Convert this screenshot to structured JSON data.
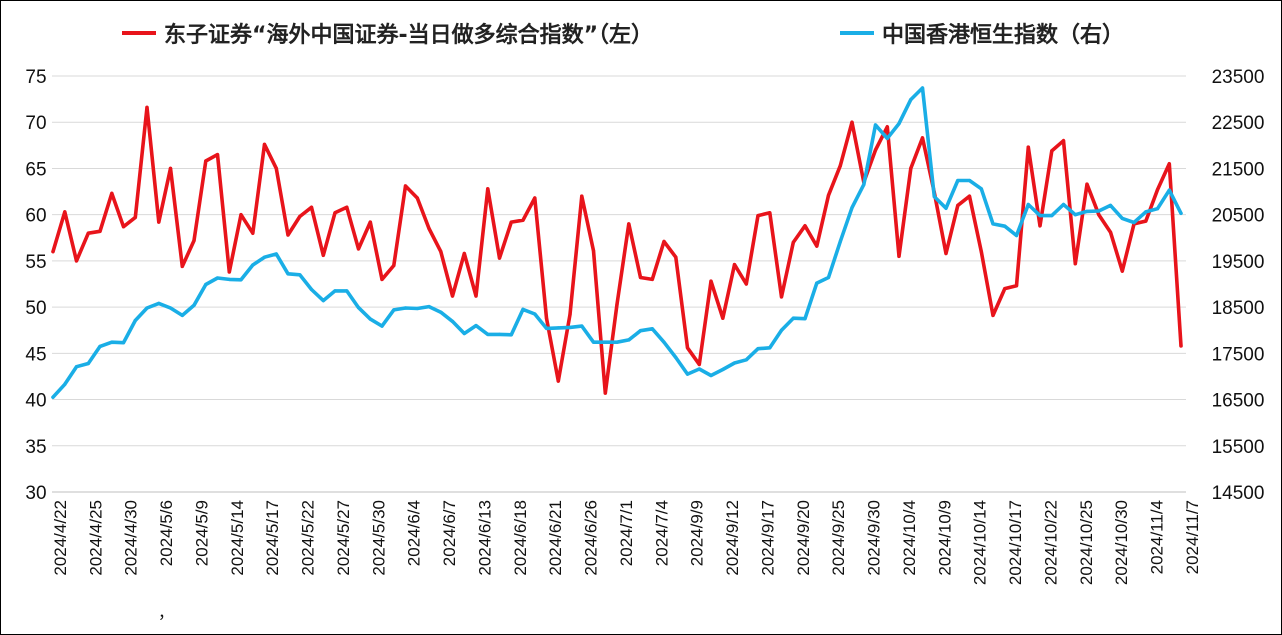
{
  "chart_data": {
    "type": "line",
    "legend": [
      {
        "name": "东子证券“海外中国证券-当日做多综合指数”（左）",
        "color": "#e8141b",
        "axis": "left"
      },
      {
        "name": "中国香港恒生指数（右）",
        "color": "#1aaee6",
        "axis": "right"
      }
    ],
    "left_axis": {
      "min": 30,
      "max": 75,
      "ticks": [
        "75",
        "70",
        "65",
        "60",
        "55",
        "50",
        "45",
        "40",
        "35",
        "30"
      ]
    },
    "right_axis": {
      "min": 14500,
      "max": 23500,
      "ticks": [
        "23500",
        "22500",
        "21500",
        "20500",
        "19500",
        "18500",
        "17500",
        "16500",
        "15500",
        "14500"
      ]
    },
    "x_ticks": [
      "2024/4/22",
      "2024/4/25",
      "2024/4/30",
      "2024/5/6",
      "2024/5/9",
      "2024/5/14",
      "2024/5/17",
      "2024/5/22",
      "2024/5/27",
      "2024/5/30",
      "2024/6/4",
      "2024/6/7",
      "2024/6/13",
      "2024/6/18",
      "2024/6/21",
      "2024/6/26",
      "2024/7/1",
      "2024/7/4",
      "2024/9/9",
      "2024/9/12",
      "2024/9/17",
      "2024/9/20",
      "2024/9/25",
      "2024/9/30",
      "2024/10/4",
      "2024/10/9",
      "2024/10/14",
      "2024/10/17",
      "2024/10/22",
      "2024/10/25",
      "2024/10/30",
      "2024/11/4",
      "2024/11/7"
    ],
    "annotation": "，",
    "grid": "horizontal",
    "series": [
      {
        "name": "东子证券“海外中国证券-当日做多综合指数”（左）",
        "color": "#e8141b",
        "axis": "left",
        "values": [
          56,
          60.3,
          55,
          58,
          58.2,
          62.3,
          58.7,
          59.7,
          71.6,
          59.2,
          65,
          54.4,
          57.2,
          65.8,
          66.5,
          53.8,
          60,
          58,
          67.6,
          65,
          57.8,
          59.8,
          60.8,
          55.6,
          60.2,
          60.8,
          56.3,
          59.2,
          53,
          54.5,
          63.1,
          61.8,
          58.5,
          56,
          51.2,
          55.8,
          51.2,
          62.8,
          55.3,
          59.2,
          59.4,
          61.8,
          48.8,
          42,
          49.2,
          62,
          56.1,
          40.7,
          50.3,
          59,
          53.2,
          53,
          57.1,
          55.4,
          45.6,
          43.8,
          52.8,
          48.8,
          54.6,
          52.5,
          59.9,
          60.2,
          51.1,
          57,
          58.8,
          56.6,
          62.1,
          65.3,
          70,
          63.5,
          67,
          69.5,
          55.5,
          65,
          68.3,
          62.4,
          55.8,
          61,
          62,
          56,
          49.1,
          52,
          52.3,
          67.3,
          58.8,
          66.9,
          68,
          54.7,
          63.3,
          60,
          58.1,
          53.9,
          59,
          59.3,
          62.7,
          65.5,
          45.8
        ]
      },
      {
        "name": "中国香港恒生指数（右）",
        "color": "#1aaee6",
        "axis": "right",
        "values": [
          16550,
          16830,
          17210,
          17280,
          17650,
          17740,
          17730,
          18210,
          18480,
          18580,
          18480,
          18320,
          18540,
          18990,
          19130,
          19100,
          19090,
          19410,
          19580,
          19650,
          19220,
          19200,
          18880,
          18640,
          18850,
          18850,
          18490,
          18240,
          18090,
          18440,
          18480,
          18470,
          18510,
          18390,
          18190,
          17930,
          18100,
          17910,
          17910,
          17900,
          18450,
          18350,
          18040,
          18050,
          18060,
          18090,
          17740,
          17740,
          17740,
          17790,
          17990,
          18030,
          17740,
          17410,
          17050,
          17160,
          17020,
          17150,
          17290,
          17360,
          17600,
          17620,
          18000,
          18260,
          18250,
          19020,
          19140,
          19920,
          20650,
          21150,
          22440,
          22150,
          22470,
          22990,
          23240,
          20890,
          20640,
          21240,
          21240,
          21060,
          20300,
          20250,
          20050,
          20720,
          20480,
          20480,
          20720,
          20500,
          20570,
          20580,
          20700,
          20420,
          20330,
          20560,
          20630,
          21030,
          20530
        ]
      }
    ]
  }
}
